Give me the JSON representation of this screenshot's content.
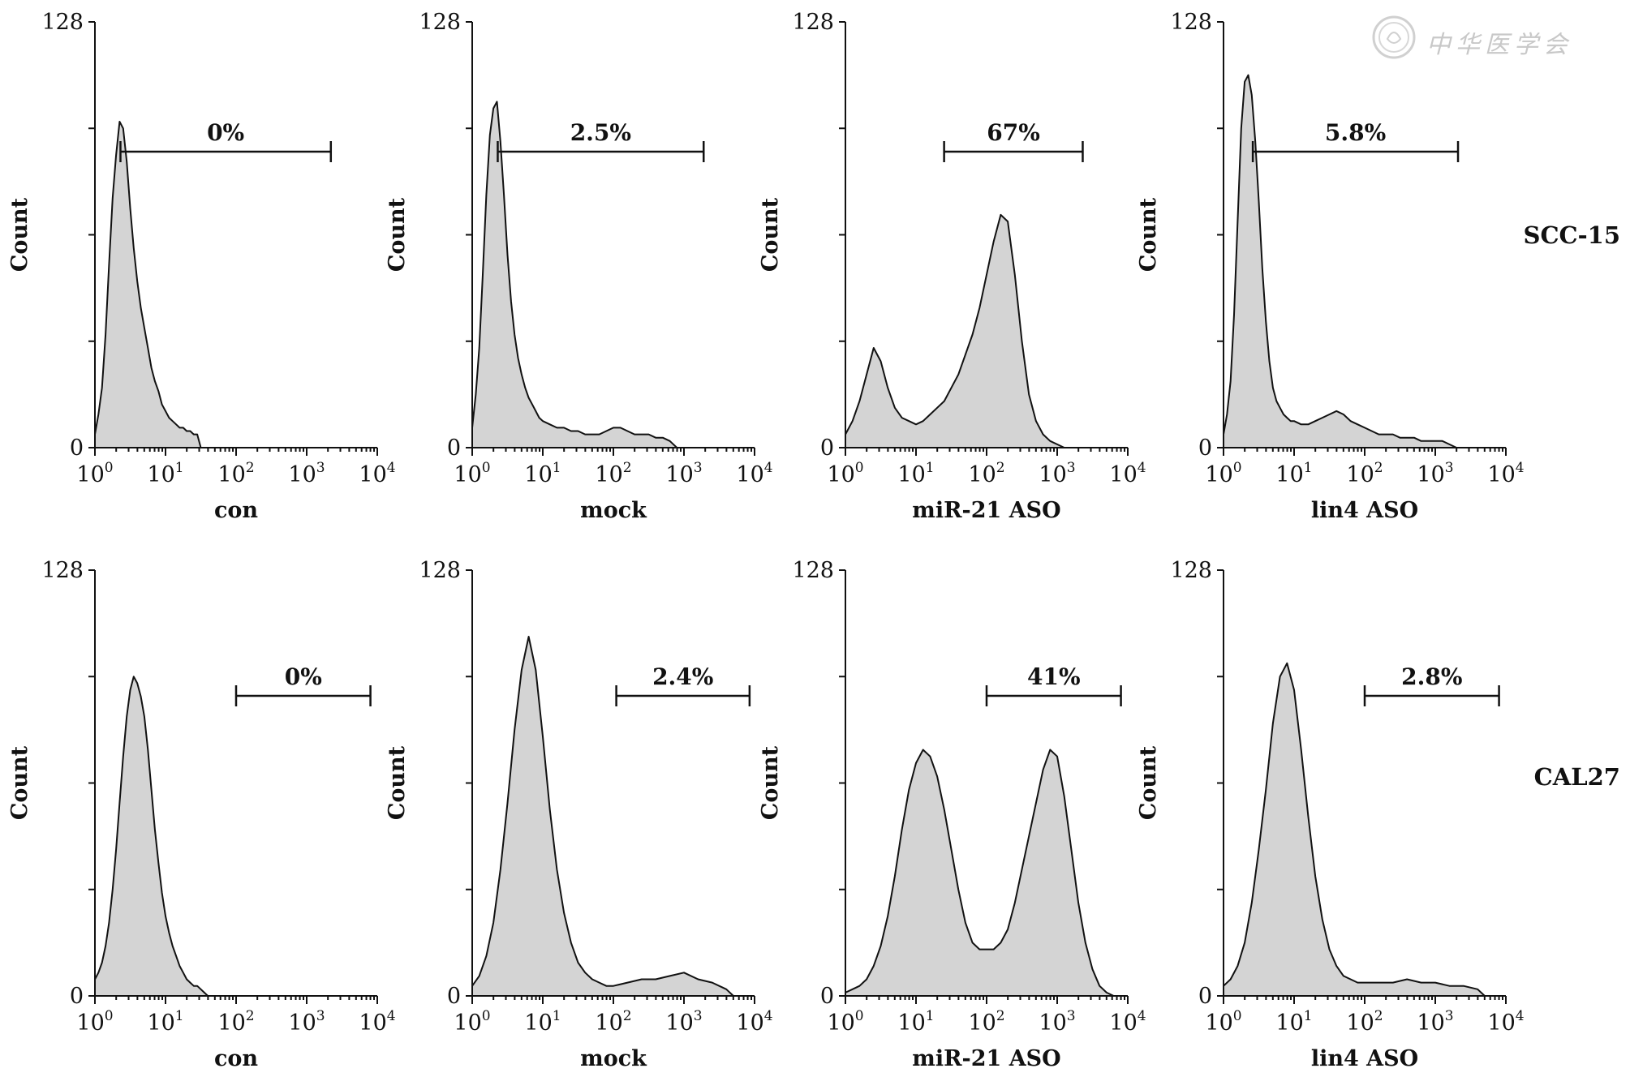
{
  "watermark": {
    "text": "中华医学会"
  },
  "row_labels": [
    "SCC-15",
    "CAL27"
  ],
  "chart_data": [
    {
      "type": "histogram",
      "row": 0,
      "col": 0,
      "row_label": "SCC-15",
      "xlabel": "con",
      "ylabel": "Count",
      "xscale": "log",
      "xlim": [
        1,
        10000
      ],
      "ylim": [
        0,
        128
      ],
      "xticks": [
        {
          "base": "10",
          "exp": "0"
        },
        {
          "base": "10",
          "exp": "1"
        },
        {
          "base": "10",
          "exp": "2"
        },
        {
          "base": "10",
          "exp": "3"
        },
        {
          "base": "10",
          "exp": "4"
        }
      ],
      "yticks": [
        "0",
        "128"
      ],
      "gate": {
        "label": "0%",
        "from": 2.3,
        "to": 2200
      },
      "x_log": [
        0,
        0.05,
        0.1,
        0.15,
        0.2,
        0.25,
        0.3,
        0.35,
        0.4,
        0.45,
        0.5,
        0.55,
        0.6,
        0.65,
        0.7,
        0.75,
        0.8,
        0.85,
        0.9,
        0.95,
        1.0,
        1.05,
        1.1,
        1.15,
        1.2,
        1.25,
        1.3,
        1.35,
        1.4,
        1.45,
        1.5
      ],
      "counts": [
        4,
        10,
        18,
        34,
        55,
        75,
        88,
        98,
        96,
        86,
        72,
        60,
        50,
        42,
        36,
        30,
        24,
        20,
        17,
        13,
        11,
        9,
        8,
        7,
        6,
        6,
        5,
        5,
        4,
        4,
        0
      ]
    },
    {
      "type": "histogram",
      "row": 0,
      "col": 1,
      "row_label": "SCC-15",
      "xlabel": "mock",
      "ylabel": "Count",
      "xscale": "log",
      "xlim": [
        1,
        10000
      ],
      "ylim": [
        0,
        128
      ],
      "xticks": [
        {
          "base": "10",
          "exp": "0"
        },
        {
          "base": "10",
          "exp": "1"
        },
        {
          "base": "10",
          "exp": "2"
        },
        {
          "base": "10",
          "exp": "3"
        },
        {
          "base": "10",
          "exp": "4"
        }
      ],
      "yticks": [
        "0",
        "128"
      ],
      "gate": {
        "label": "2.5%",
        "from": 2.3,
        "to": 1900
      },
      "x_log": [
        0,
        0.05,
        0.1,
        0.15,
        0.2,
        0.25,
        0.3,
        0.35,
        0.4,
        0.45,
        0.5,
        0.55,
        0.6,
        0.65,
        0.7,
        0.75,
        0.8,
        0.85,
        0.9,
        0.95,
        1.0,
        1.1,
        1.2,
        1.3,
        1.4,
        1.5,
        1.6,
        1.7,
        1.8,
        1.9,
        2.0,
        2.1,
        2.2,
        2.3,
        2.4,
        2.5,
        2.6,
        2.7,
        2.8,
        2.9
      ],
      "counts": [
        6,
        16,
        30,
        52,
        76,
        94,
        102,
        104,
        92,
        76,
        58,
        44,
        34,
        27,
        22,
        18,
        15,
        13,
        11,
        9,
        8,
        7,
        6,
        6,
        5,
        5,
        4,
        4,
        4,
        5,
        6,
        6,
        5,
        4,
        4,
        4,
        3,
        3,
        2,
        0
      ]
    },
    {
      "type": "histogram",
      "row": 0,
      "col": 2,
      "row_label": "SCC-15",
      "xlabel": "miR-21 ASO",
      "ylabel": "Count",
      "xscale": "log",
      "xlim": [
        1,
        10000
      ],
      "ylim": [
        0,
        128
      ],
      "xticks": [
        {
          "base": "10",
          "exp": "0"
        },
        {
          "base": "10",
          "exp": "1"
        },
        {
          "base": "10",
          "exp": "2"
        },
        {
          "base": "10",
          "exp": "3"
        },
        {
          "base": "10",
          "exp": "4"
        }
      ],
      "yticks": [
        "0",
        "128"
      ],
      "gate": {
        "label": "67%",
        "from": 25,
        "to": 2300
      },
      "x_log": [
        0,
        0.1,
        0.2,
        0.3,
        0.4,
        0.5,
        0.6,
        0.7,
        0.8,
        0.9,
        1.0,
        1.1,
        1.2,
        1.3,
        1.4,
        1.5,
        1.6,
        1.7,
        1.8,
        1.9,
        2.0,
        2.1,
        2.2,
        2.3,
        2.4,
        2.5,
        2.6,
        2.7,
        2.8,
        2.9,
        3.0,
        3.1
      ],
      "counts": [
        4,
        8,
        14,
        22,
        30,
        26,
        18,
        12,
        9,
        8,
        7,
        8,
        10,
        12,
        14,
        18,
        22,
        28,
        34,
        42,
        52,
        62,
        70,
        68,
        52,
        32,
        16,
        8,
        4,
        2,
        1,
        0
      ]
    },
    {
      "type": "histogram",
      "row": 0,
      "col": 3,
      "row_label": "SCC-15",
      "xlabel": "lin4 ASO",
      "ylabel": "Count",
      "xscale": "log",
      "xlim": [
        1,
        10000
      ],
      "ylim": [
        0,
        128
      ],
      "xticks": [
        {
          "base": "10",
          "exp": "0"
        },
        {
          "base": "10",
          "exp": "1"
        },
        {
          "base": "10",
          "exp": "2"
        },
        {
          "base": "10",
          "exp": "3"
        },
        {
          "base": "10",
          "exp": "4"
        }
      ],
      "yticks": [
        "0",
        "128"
      ],
      "gate": {
        "label": "5.8%",
        "from": 2.6,
        "to": 2100
      },
      "x_log": [
        0,
        0.05,
        0.1,
        0.15,
        0.2,
        0.25,
        0.3,
        0.35,
        0.4,
        0.45,
        0.5,
        0.55,
        0.6,
        0.65,
        0.7,
        0.75,
        0.8,
        0.85,
        0.9,
        0.95,
        1.0,
        1.1,
        1.2,
        1.3,
        1.4,
        1.5,
        1.6,
        1.7,
        1.8,
        1.9,
        2.0,
        2.1,
        2.2,
        2.3,
        2.4,
        2.5,
        2.6,
        2.7,
        2.8,
        2.9,
        3.0,
        3.1,
        3.2,
        3.3
      ],
      "counts": [
        4,
        10,
        20,
        40,
        68,
        96,
        110,
        112,
        106,
        92,
        74,
        54,
        38,
        26,
        18,
        14,
        12,
        10,
        9,
        8,
        8,
        7,
        7,
        8,
        9,
        10,
        11,
        10,
        8,
        7,
        6,
        5,
        4,
        4,
        4,
        3,
        3,
        3,
        2,
        2,
        2,
        2,
        1,
        0
      ]
    },
    {
      "type": "histogram",
      "row": 1,
      "col": 0,
      "row_label": "CAL27",
      "xlabel": "con",
      "ylabel": "Count",
      "xscale": "log",
      "xlim": [
        1,
        10000
      ],
      "ylim": [
        0,
        128
      ],
      "xticks": [
        {
          "base": "10",
          "exp": "0"
        },
        {
          "base": "10",
          "exp": "1"
        },
        {
          "base": "10",
          "exp": "2"
        },
        {
          "base": "10",
          "exp": "3"
        },
        {
          "base": "10",
          "exp": "4"
        }
      ],
      "yticks": [
        "0",
        "128"
      ],
      "gate": {
        "label": "0%",
        "from": 100,
        "to": 8000
      },
      "x_log": [
        0,
        0.05,
        0.1,
        0.15,
        0.2,
        0.25,
        0.3,
        0.35,
        0.4,
        0.45,
        0.5,
        0.55,
        0.6,
        0.65,
        0.7,
        0.75,
        0.8,
        0.85,
        0.9,
        0.95,
        1.0,
        1.05,
        1.1,
        1.15,
        1.2,
        1.25,
        1.3,
        1.35,
        1.4,
        1.45,
        1.5,
        1.55,
        1.6
      ],
      "counts": [
        5,
        7,
        10,
        15,
        22,
        32,
        44,
        58,
        72,
        84,
        92,
        96,
        94,
        90,
        84,
        74,
        62,
        50,
        40,
        31,
        24,
        19,
        15,
        12,
        9,
        7,
        5,
        4,
        3,
        3,
        2,
        1,
        0
      ]
    },
    {
      "type": "histogram",
      "row": 1,
      "col": 1,
      "row_label": "CAL27",
      "xlabel": "mock",
      "ylabel": "Count",
      "xscale": "log",
      "xlim": [
        1,
        10000
      ],
      "ylim": [
        0,
        128
      ],
      "xticks": [
        {
          "base": "10",
          "exp": "0"
        },
        {
          "base": "10",
          "exp": "1"
        },
        {
          "base": "10",
          "exp": "2"
        },
        {
          "base": "10",
          "exp": "3"
        },
        {
          "base": "10",
          "exp": "4"
        }
      ],
      "yticks": [
        "0",
        "128"
      ],
      "gate": {
        "label": "2.4%",
        "from": 110,
        "to": 8500
      },
      "x_log": [
        0,
        0.1,
        0.2,
        0.3,
        0.4,
        0.5,
        0.6,
        0.7,
        0.8,
        0.9,
        1.0,
        1.1,
        1.2,
        1.3,
        1.4,
        1.5,
        1.6,
        1.7,
        1.8,
        1.9,
        2.0,
        2.2,
        2.4,
        2.6,
        2.8,
        3.0,
        3.2,
        3.4,
        3.6,
        3.7
      ],
      "counts": [
        3,
        6,
        12,
        22,
        38,
        58,
        80,
        98,
        108,
        98,
        78,
        56,
        38,
        25,
        16,
        10,
        7,
        5,
        4,
        3,
        3,
        4,
        5,
        5,
        6,
        7,
        5,
        4,
        2,
        0
      ]
    },
    {
      "type": "histogram",
      "row": 1,
      "col": 2,
      "row_label": "CAL27",
      "xlabel": "miR-21 ASO",
      "ylabel": "Count",
      "xscale": "log",
      "xlim": [
        1,
        10000
      ],
      "ylim": [
        0,
        128
      ],
      "xticks": [
        {
          "base": "10",
          "exp": "0"
        },
        {
          "base": "10",
          "exp": "1"
        },
        {
          "base": "10",
          "exp": "2"
        },
        {
          "base": "10",
          "exp": "3"
        },
        {
          "base": "10",
          "exp": "4"
        }
      ],
      "yticks": [
        "0",
        "128"
      ],
      "gate": {
        "label": "41%",
        "from": 100,
        "to": 8000
      },
      "x_log": [
        0,
        0.1,
        0.2,
        0.3,
        0.4,
        0.5,
        0.6,
        0.7,
        0.8,
        0.9,
        1.0,
        1.1,
        1.2,
        1.3,
        1.4,
        1.5,
        1.6,
        1.7,
        1.8,
        1.9,
        2.0,
        2.1,
        2.2,
        2.3,
        2.4,
        2.5,
        2.6,
        2.7,
        2.8,
        2.9,
        3.0,
        3.1,
        3.2,
        3.3,
        3.4,
        3.5,
        3.6,
        3.7,
        3.8
      ],
      "counts": [
        1,
        2,
        3,
        5,
        9,
        15,
        24,
        36,
        50,
        62,
        70,
        74,
        72,
        66,
        56,
        44,
        32,
        22,
        16,
        14,
        14,
        14,
        16,
        20,
        28,
        38,
        48,
        58,
        68,
        74,
        72,
        60,
        44,
        28,
        16,
        8,
        3,
        1,
        0
      ]
    },
    {
      "type": "histogram",
      "row": 1,
      "col": 3,
      "row_label": "CAL27",
      "xlabel": "lin4 ASO",
      "ylabel": "Count",
      "xscale": "log",
      "xlim": [
        1,
        10000
      ],
      "ylim": [
        0,
        128
      ],
      "xticks": [
        {
          "base": "10",
          "exp": "0"
        },
        {
          "base": "10",
          "exp": "1"
        },
        {
          "base": "10",
          "exp": "2"
        },
        {
          "base": "10",
          "exp": "3"
        },
        {
          "base": "10",
          "exp": "4"
        }
      ],
      "yticks": [
        "0",
        "128"
      ],
      "gate": {
        "label": "2.8%",
        "from": 100,
        "to": 8000
      },
      "x_log": [
        0,
        0.1,
        0.2,
        0.3,
        0.4,
        0.5,
        0.6,
        0.7,
        0.8,
        0.9,
        1.0,
        1.1,
        1.2,
        1.3,
        1.4,
        1.5,
        1.6,
        1.7,
        1.8,
        1.9,
        2.0,
        2.2,
        2.4,
        2.6,
        2.8,
        3.0,
        3.2,
        3.4,
        3.6,
        3.7
      ],
      "counts": [
        3,
        5,
        9,
        16,
        28,
        44,
        62,
        82,
        96,
        100,
        92,
        74,
        54,
        36,
        23,
        14,
        9,
        6,
        5,
        4,
        4,
        4,
        4,
        5,
        4,
        4,
        3,
        3,
        2,
        0
      ]
    }
  ]
}
